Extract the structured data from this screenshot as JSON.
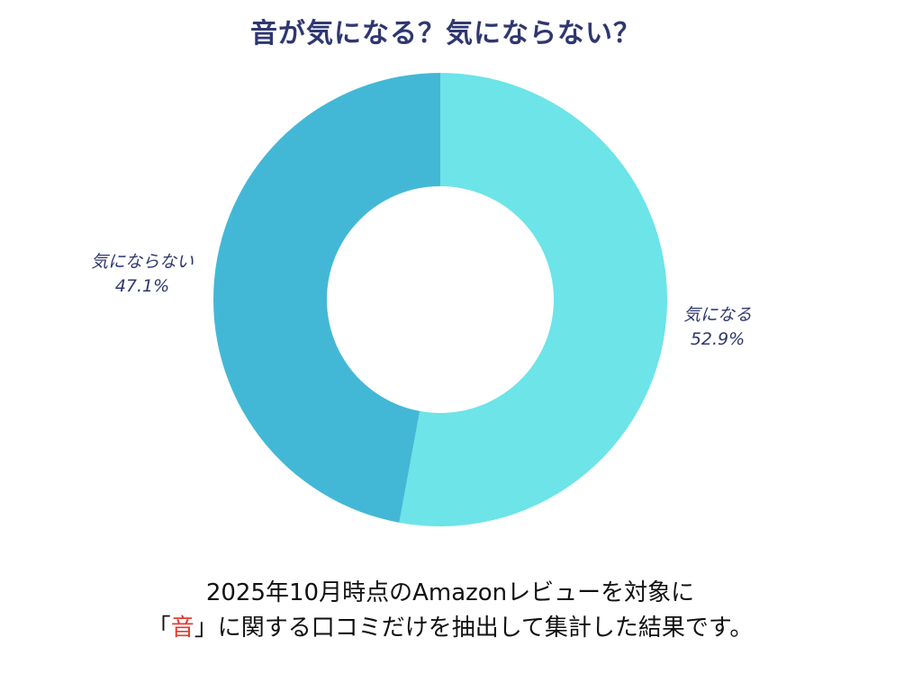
{
  "chart_data": {
    "type": "pie",
    "title": "音が気になる？気にならない？",
    "donut": true,
    "start": "top",
    "direction": "clockwise",
    "slices": [
      {
        "label": "気になる",
        "value": 52.9,
        "value_label": "52.9%",
        "color": "#6ce4e8"
      },
      {
        "label": "気にならない",
        "value": 47.1,
        "value_label": "47.1%",
        "color": "#43b8d6"
      }
    ]
  },
  "footnote": {
    "line1": "2025年10月時点のAmazonレビューを対象に",
    "line2_open": "「",
    "line2_highlight": "音",
    "line2_rest": "」に関する口コミだけを抽出して集計した結果です。"
  }
}
